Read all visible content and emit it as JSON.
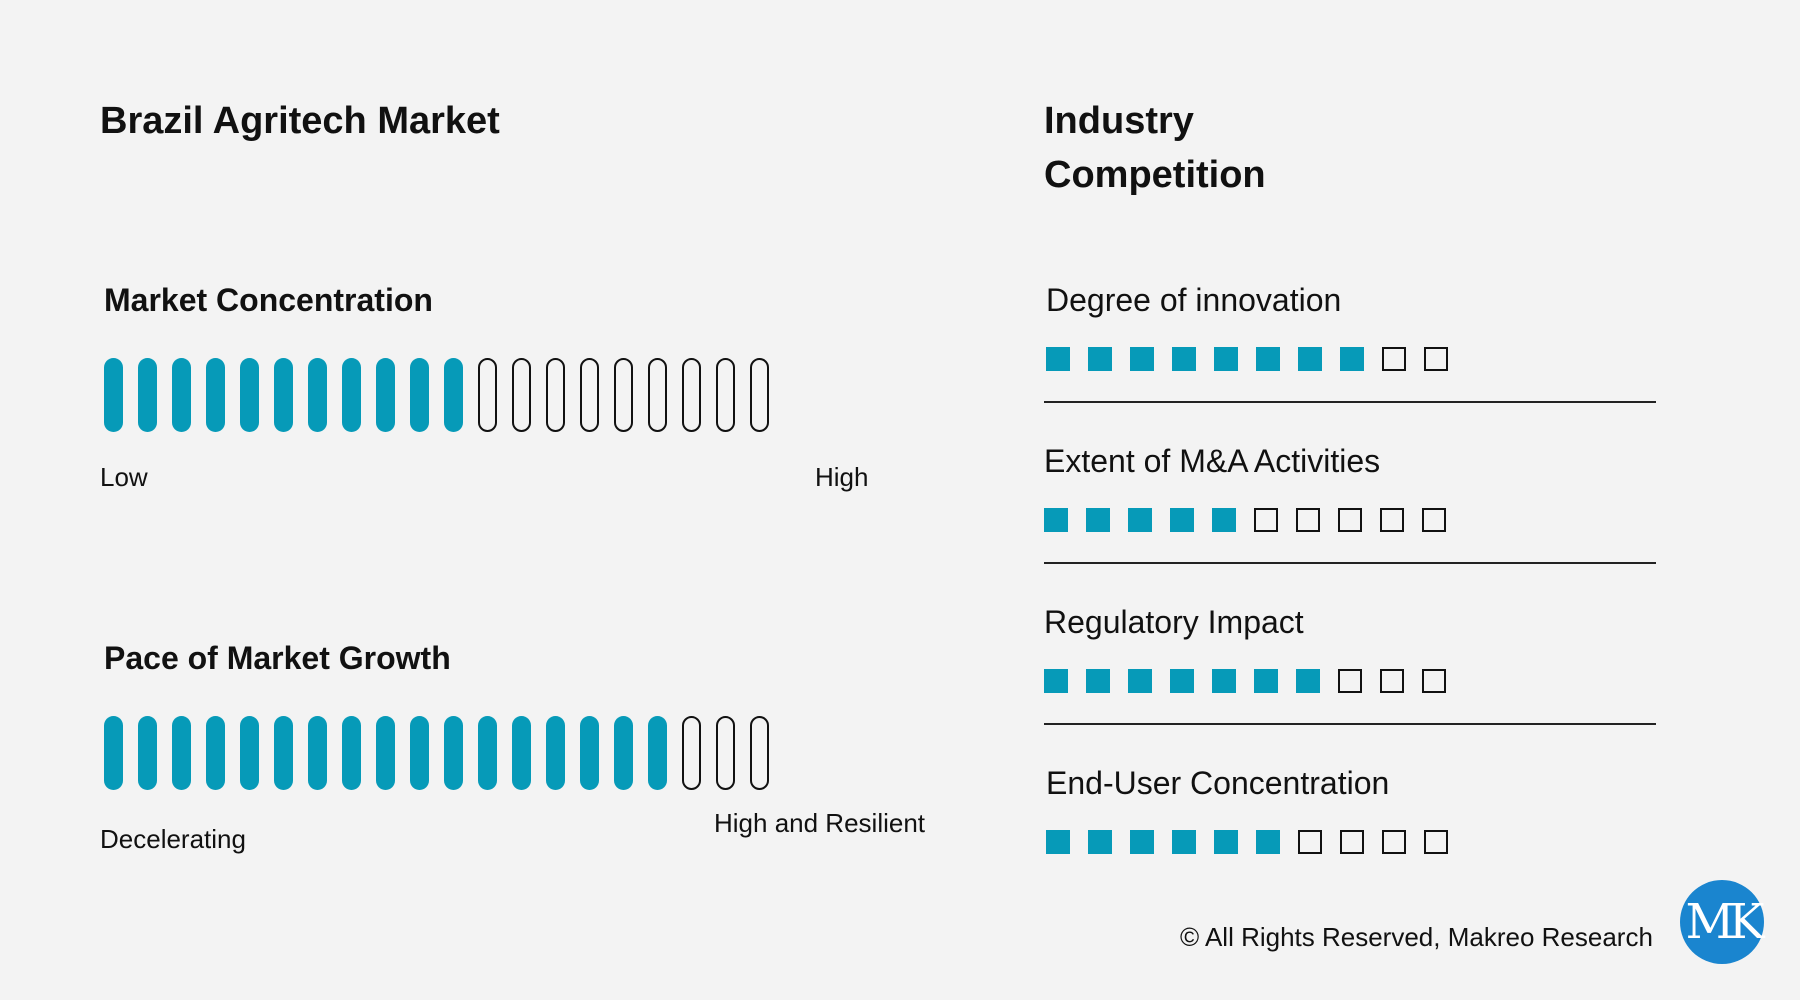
{
  "left": {
    "title": "Brazil Agritech Market",
    "gauges": [
      {
        "label": "Market Concentration",
        "low_label": "Low",
        "high_label": "High",
        "filled": 11,
        "total": 20
      },
      {
        "label": "Pace of Market Growth",
        "low_label": "Decelerating",
        "high_label": "High and Resilient",
        "filled": 17,
        "total": 20
      }
    ]
  },
  "right": {
    "title_line1": "Industry",
    "title_line2": "Competition",
    "ratings": [
      {
        "label": "Degree of innovation",
        "filled": 8,
        "total": 10
      },
      {
        "label": "Extent of M&A Activities",
        "filled": 5,
        "total": 10
      },
      {
        "label": "Regulatory Impact",
        "filled": 7,
        "total": 10
      },
      {
        "label": "End-User Concentration",
        "filled": 6,
        "total": 10
      }
    ]
  },
  "footer": {
    "copyright": "© All Rights Reserved, Makreo Research"
  },
  "logo": {
    "text": "MK"
  },
  "colors": {
    "accent": "#069ab8",
    "logo_bg": "#1a85cf",
    "background": "#f3f3f3"
  }
}
